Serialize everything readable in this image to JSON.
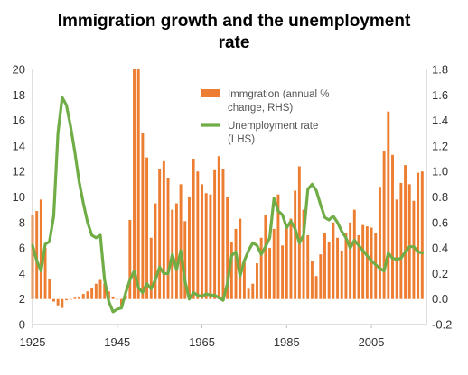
{
  "chart_data": {
    "type": "bar+line",
    "title_lines": [
      "Immigration growth and the unemployment",
      "rate"
    ],
    "x_ticks": [
      "1925",
      "1945",
      "1965",
      "1985",
      "2005"
    ],
    "y_left_ticks": [
      "0",
      "2",
      "4",
      "6",
      "8",
      "10",
      "12",
      "14",
      "16",
      "18",
      "20"
    ],
    "y_right_ticks": [
      "-0.2",
      "0.0",
      "0.2",
      "0.4",
      "0.6",
      "0.8",
      "1.0",
      "1.2",
      "1.4",
      "1.6",
      "1.8"
    ],
    "xlim": [
      1925,
      2018
    ],
    "ylim_left": [
      0,
      20
    ],
    "ylim_right": [
      -0.2,
      1.8
    ],
    "legend": {
      "position": "top-right",
      "bar_label_lines": [
        "Immgration (annual %",
        "change, RHS)"
      ],
      "line_label_lines": [
        "Unemployment rate",
        "(LHS)"
      ]
    },
    "colors": {
      "bars": "#ED7D31",
      "line": "#70AD47",
      "axis": "#bfbfbf"
    },
    "bar_series": {
      "name": "Immgration (annual % change, RHS)",
      "axis": "right",
      "x": [
        1925,
        1926,
        1927,
        1928,
        1929,
        1930,
        1931,
        1932,
        1933,
        1934,
        1935,
        1936,
        1937,
        1938,
        1939,
        1940,
        1941,
        1942,
        1943,
        1944,
        1945,
        1946,
        1947,
        1948,
        1949,
        1950,
        1951,
        1952,
        1953,
        1954,
        1955,
        1956,
        1957,
        1958,
        1959,
        1960,
        1961,
        1962,
        1963,
        1964,
        1965,
        1966,
        1967,
        1968,
        1969,
        1970,
        1971,
        1972,
        1973,
        1974,
        1975,
        1976,
        1977,
        1978,
        1979,
        1980,
        1981,
        1982,
        1983,
        1984,
        1985,
        1986,
        1987,
        1988,
        1989,
        1990,
        1991,
        1992,
        1993,
        1994,
        1995,
        1996,
        1997,
        1998,
        1999,
        2000,
        2001,
        2002,
        2003,
        2004,
        2005,
        2006,
        2007,
        2008,
        2009,
        2010,
        2011,
        2012,
        2013,
        2014,
        2015,
        2016,
        2017
      ],
      "values": [
        0.66,
        0.69,
        0.78,
        0.4,
        0.16,
        -0.02,
        -0.05,
        -0.07,
        -0.01,
        0.0,
        0.01,
        0.02,
        0.04,
        0.06,
        0.09,
        0.12,
        0.15,
        0.12,
        0.06,
        0.02,
        0.0,
        -0.05,
        0.03,
        0.62,
        1.8,
        1.8,
        1.3,
        1.11,
        0.48,
        0.75,
        1.02,
        1.08,
        0.95,
        0.7,
        0.75,
        0.9,
        0.61,
        0.8,
        1.1,
        1.0,
        0.9,
        0.83,
        0.82,
        1.01,
        1.12,
        1.02,
        0.8,
        0.45,
        0.55,
        0.63,
        0.29,
        0.08,
        0.12,
        0.28,
        0.48,
        0.66,
        0.4,
        0.55,
        0.82,
        0.42,
        0.56,
        0.63,
        0.85,
        1.04,
        0.7,
        0.5,
        0.3,
        0.18,
        0.35,
        0.52,
        0.45,
        0.6,
        0.48,
        0.38,
        0.52,
        0.6,
        0.7,
        0.5,
        0.58,
        0.57,
        0.56,
        0.52,
        0.88,
        1.16,
        1.47,
        1.13,
        0.78,
        0.91,
        1.05,
        0.9,
        0.77,
        0.99,
        1.0
      ]
    },
    "line_series": {
      "name": "Unemployment rate (LHS)",
      "axis": "left",
      "x": [
        1925,
        1926,
        1927,
        1928,
        1929,
        1930,
        1931,
        1932,
        1933,
        1934,
        1935,
        1936,
        1937,
        1938,
        1939,
        1940,
        1941,
        1942,
        1943,
        1944,
        1945,
        1946,
        1947,
        1948,
        1949,
        1950,
        1951,
        1952,
        1953,
        1954,
        1955,
        1956,
        1957,
        1958,
        1959,
        1960,
        1961,
        1962,
        1963,
        1964,
        1965,
        1966,
        1967,
        1968,
        1969,
        1970,
        1971,
        1972,
        1973,
        1974,
        1975,
        1976,
        1977,
        1978,
        1979,
        1980,
        1981,
        1982,
        1983,
        1984,
        1985,
        1986,
        1987,
        1988,
        1989,
        1990,
        1991,
        1992,
        1993,
        1994,
        1995,
        1996,
        1997,
        1998,
        1999,
        2000,
        2001,
        2002,
        2003,
        2004,
        2005,
        2006,
        2007,
        2008,
        2009,
        2010,
        2011,
        2012,
        2013,
        2014,
        2015,
        2016,
        2017
      ],
      "values": [
        6.2,
        5.0,
        4.2,
        6.3,
        6.5,
        8.5,
        15.0,
        17.8,
        17.2,
        15.5,
        13.5,
        11.2,
        9.5,
        8.0,
        7.0,
        6.8,
        7.0,
        3.5,
        1.8,
        1.0,
        1.2,
        1.3,
        2.5,
        3.5,
        4.2,
        2.9,
        2.5,
        3.2,
        2.8,
        3.5,
        4.5,
        4.0,
        4.0,
        5.5,
        4.3,
        5.8,
        3.4,
        2.0,
        2.5,
        2.3,
        2.2,
        2.4,
        2.3,
        2.3,
        2.1,
        1.9,
        3.2,
        5.4,
        5.7,
        3.8,
        5.0,
        5.8,
        6.4,
        6.2,
        5.5,
        6.1,
        6.8,
        9.9,
        8.9,
        8.6,
        7.6,
        8.1,
        7.5,
        6.4,
        7.0,
        10.6,
        11.0,
        10.5,
        9.4,
        8.4,
        8.2,
        8.5,
        8.0,
        7.3,
        6.8,
        6.0,
        6.6,
        6.2,
        5.8,
        5.4,
        5.0,
        4.7,
        4.4,
        4.2,
        5.6,
        5.2,
        5.1,
        5.2,
        5.7,
        6.1,
        6.1,
        5.7,
        5.6
      ]
    }
  }
}
